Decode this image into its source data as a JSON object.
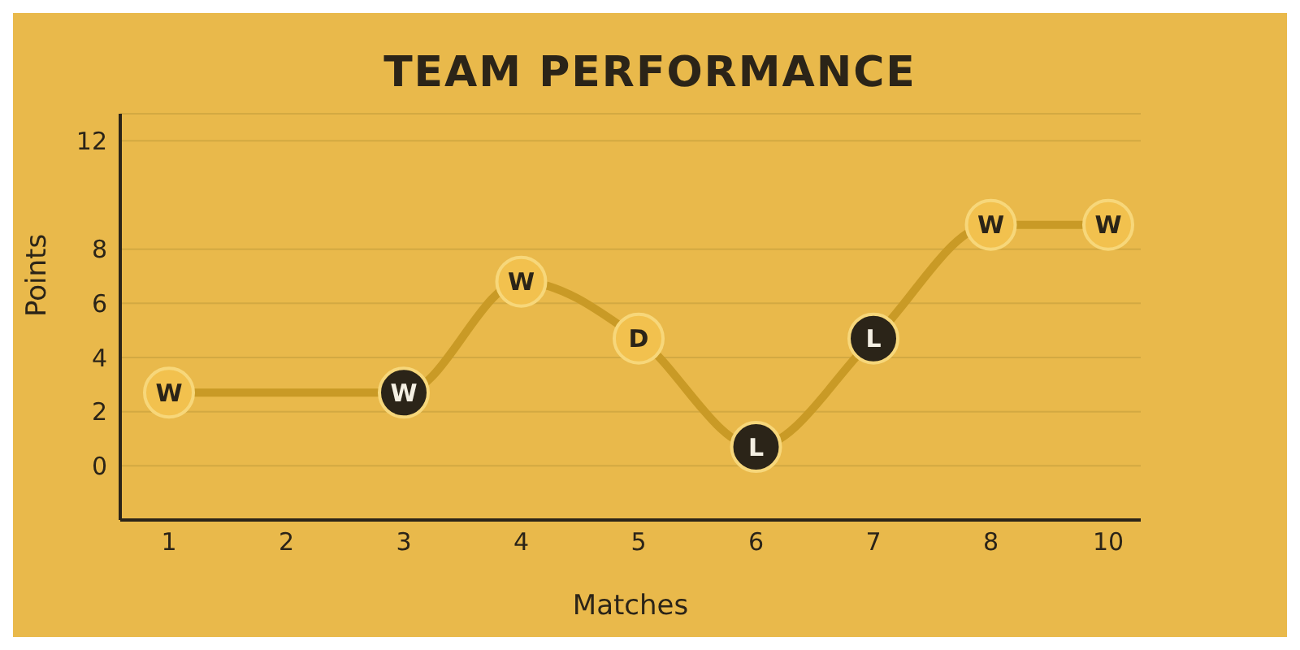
{
  "chart_data": {
    "type": "line",
    "title": "TEAM PERFORMANCE",
    "xlabel": "Matches",
    "ylabel": "Points",
    "categories": [
      "1",
      "2",
      "3",
      "4",
      "5",
      "6",
      "7",
      "8",
      "10"
    ],
    "series": [
      {
        "color": "#c99a26",
        "values": [
          2.7,
          null,
          2.7,
          6.8,
          4.7,
          0.7,
          4.7,
          8.9,
          8.9
        ],
        "colors": [
          "#f2c14e",
          null,
          "#2b2418",
          "#f2c14e",
          "#f2c14e",
          "#2b2418",
          "#2b2418",
          "#f2c14e",
          "#f2c14e"
        ]
      }
    ],
    "ylim": [
      -2,
      13
    ],
    "yticks": [
      0,
      2,
      4,
      6,
      8,
      12
    ],
    "grid": "y",
    "marker": "circle",
    "line_style": "solid",
    "legend": false,
    "annotations": [
      {
        "text": "W",
        "x": "1",
        "y": 2.7
      },
      {
        "text": "W",
        "x": "3",
        "y": 2.7
      },
      {
        "text": "W",
        "x": "4",
        "y": 6.8
      },
      {
        "text": "D",
        "x": "5",
        "y": 4.7
      },
      {
        "text": "L",
        "x": "6",
        "y": 0.7
      },
      {
        "text": "L",
        "x": "7",
        "y": 4.7
      },
      {
        "text": "W",
        "x": "8",
        "y": 8.9
      },
      {
        "text": "W",
        "x": "10",
        "y": 8.9
      }
    ]
  }
}
